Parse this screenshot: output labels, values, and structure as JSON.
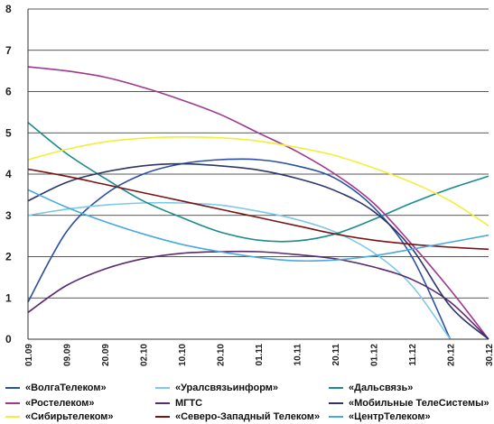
{
  "chart_data": {
    "type": "line",
    "title": "",
    "xlabel": "",
    "ylabel": "",
    "ylim": [
      0,
      8
    ],
    "yticks": [
      "0",
      "1",
      "2",
      "3",
      "4",
      "5",
      "6",
      "7",
      "8"
    ],
    "x": [
      "01.09",
      "09.09",
      "20.09",
      "02.10",
      "10.10",
      "20.10",
      "01.11",
      "10.11",
      "20.11",
      "01.12",
      "11.12",
      "20.12",
      "30.12"
    ],
    "grid": true,
    "legend_position": "bottom",
    "series": [
      {
        "name": "«ВолгаТелеком»",
        "color": "#2b4fa3",
        "values": [
          0.9,
          2.6,
          3.5,
          4.0,
          4.25,
          4.35,
          4.35,
          4.2,
          3.9,
          3.2,
          2.0,
          0.0,
          null
        ]
      },
      {
        "name": "«Уралсвязьинформ»",
        "color": "#7ec8e8",
        "values": [
          3.0,
          3.15,
          3.25,
          3.3,
          3.3,
          3.25,
          3.1,
          2.9,
          2.6,
          2.1,
          1.3,
          0.0,
          null
        ]
      },
      {
        "name": "«Дальсвязь»",
        "color": "#1a8c8c",
        "values": [
          5.25,
          4.5,
          3.9,
          3.35,
          2.95,
          2.6,
          2.4,
          2.38,
          2.55,
          2.9,
          3.3,
          3.65,
          3.95
        ]
      },
      {
        "name": "«Ростелеком»",
        "color": "#a0388f",
        "values": [
          6.6,
          6.5,
          6.35,
          6.1,
          5.8,
          5.45,
          5.0,
          4.55,
          4.0,
          3.3,
          2.3,
          1.2,
          0.0
        ]
      },
      {
        "name": "МГТС",
        "color": "#5a2a6e",
        "values": [
          0.65,
          1.3,
          1.7,
          1.95,
          2.08,
          2.12,
          2.12,
          2.05,
          1.95,
          1.75,
          1.45,
          0.9,
          0.0
        ]
      },
      {
        "name": "«Мобильные ТелеСистемы»",
        "color": "#2e3568",
        "values": [
          3.35,
          3.8,
          4.05,
          4.2,
          4.25,
          4.2,
          4.1,
          3.9,
          3.6,
          3.1,
          2.2,
          0.8,
          0.0
        ]
      },
      {
        "name": "«Сибирьтелеком»",
        "color": "#f0ef3a",
        "values": [
          4.35,
          4.6,
          4.78,
          4.87,
          4.9,
          4.88,
          4.8,
          4.65,
          4.45,
          4.15,
          3.8,
          3.35,
          2.75
        ]
      },
      {
        "name": "«Северо-Западный Телеком»",
        "color": "#7a1414",
        "values": [
          4.12,
          3.95,
          3.75,
          3.55,
          3.35,
          3.15,
          2.95,
          2.75,
          2.55,
          2.4,
          2.3,
          2.23,
          2.18
        ]
      },
      {
        "name": "«ЦентрТелеком»",
        "color": "#4aa8e0",
        "values": [
          3.62,
          3.2,
          2.85,
          2.55,
          2.3,
          2.12,
          1.98,
          1.9,
          1.92,
          2.02,
          2.18,
          2.35,
          2.52
        ]
      }
    ]
  }
}
